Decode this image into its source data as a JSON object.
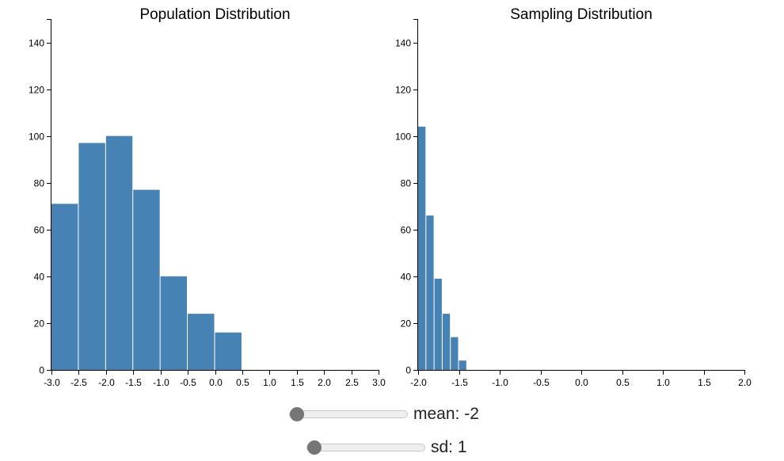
{
  "chart_data": [
    {
      "type": "histogram",
      "title": "Population Distribution",
      "bar_color": "#4682b4",
      "xlim": [
        -3.0,
        3.0
      ],
      "ylim": [
        0,
        150
      ],
      "x_ticks": [
        "-3.0",
        "-2.5",
        "-2.0",
        "-1.5",
        "-1.0",
        "-0.5",
        "0.0",
        "0.5",
        "1.0",
        "1.5",
        "2.0",
        "2.5",
        "3.0"
      ],
      "y_ticks": [
        "0",
        "20",
        "40",
        "60",
        "80",
        "100",
        "120",
        "140"
      ],
      "bins": [
        {
          "x0": -3.0,
          "x1": -2.5,
          "count": 71
        },
        {
          "x0": -2.5,
          "x1": -2.0,
          "count": 97
        },
        {
          "x0": -2.0,
          "x1": -1.5,
          "count": 100
        },
        {
          "x0": -1.5,
          "x1": -1.0,
          "count": 77
        },
        {
          "x0": -1.0,
          "x1": -0.5,
          "count": 40
        },
        {
          "x0": -0.5,
          "x1": 0.0,
          "count": 24
        },
        {
          "x0": 0.0,
          "x1": 0.5,
          "count": 16
        }
      ]
    },
    {
      "type": "histogram",
      "title": "Sampling Distribution",
      "bar_color": "#4682b4",
      "xlim": [
        -2.0,
        2.0
      ],
      "ylim": [
        0,
        150
      ],
      "x_ticks": [
        "-2.0",
        "-1.5",
        "-1.0",
        "-0.5",
        "0.0",
        "0.5",
        "1.0",
        "1.5",
        "2.0"
      ],
      "y_ticks": [
        "0",
        "20",
        "40",
        "60",
        "80",
        "100",
        "120",
        "140"
      ],
      "bins": [
        {
          "x0": -2.0,
          "x1": -1.9,
          "count": 104
        },
        {
          "x0": -1.9,
          "x1": -1.8,
          "count": 66
        },
        {
          "x0": -1.8,
          "x1": -1.7,
          "count": 39
        },
        {
          "x0": -1.7,
          "x1": -1.6,
          "count": 24
        },
        {
          "x0": -1.6,
          "x1": -1.5,
          "count": 14
        },
        {
          "x0": -1.5,
          "x1": -1.4,
          "count": 4
        }
      ]
    }
  ],
  "controls": {
    "mean": {
      "label": "mean: -2",
      "value": -2,
      "min": -2,
      "max": 2
    },
    "sd": {
      "label": "sd: 1",
      "value": 1,
      "min": 1,
      "max": 5
    }
  }
}
